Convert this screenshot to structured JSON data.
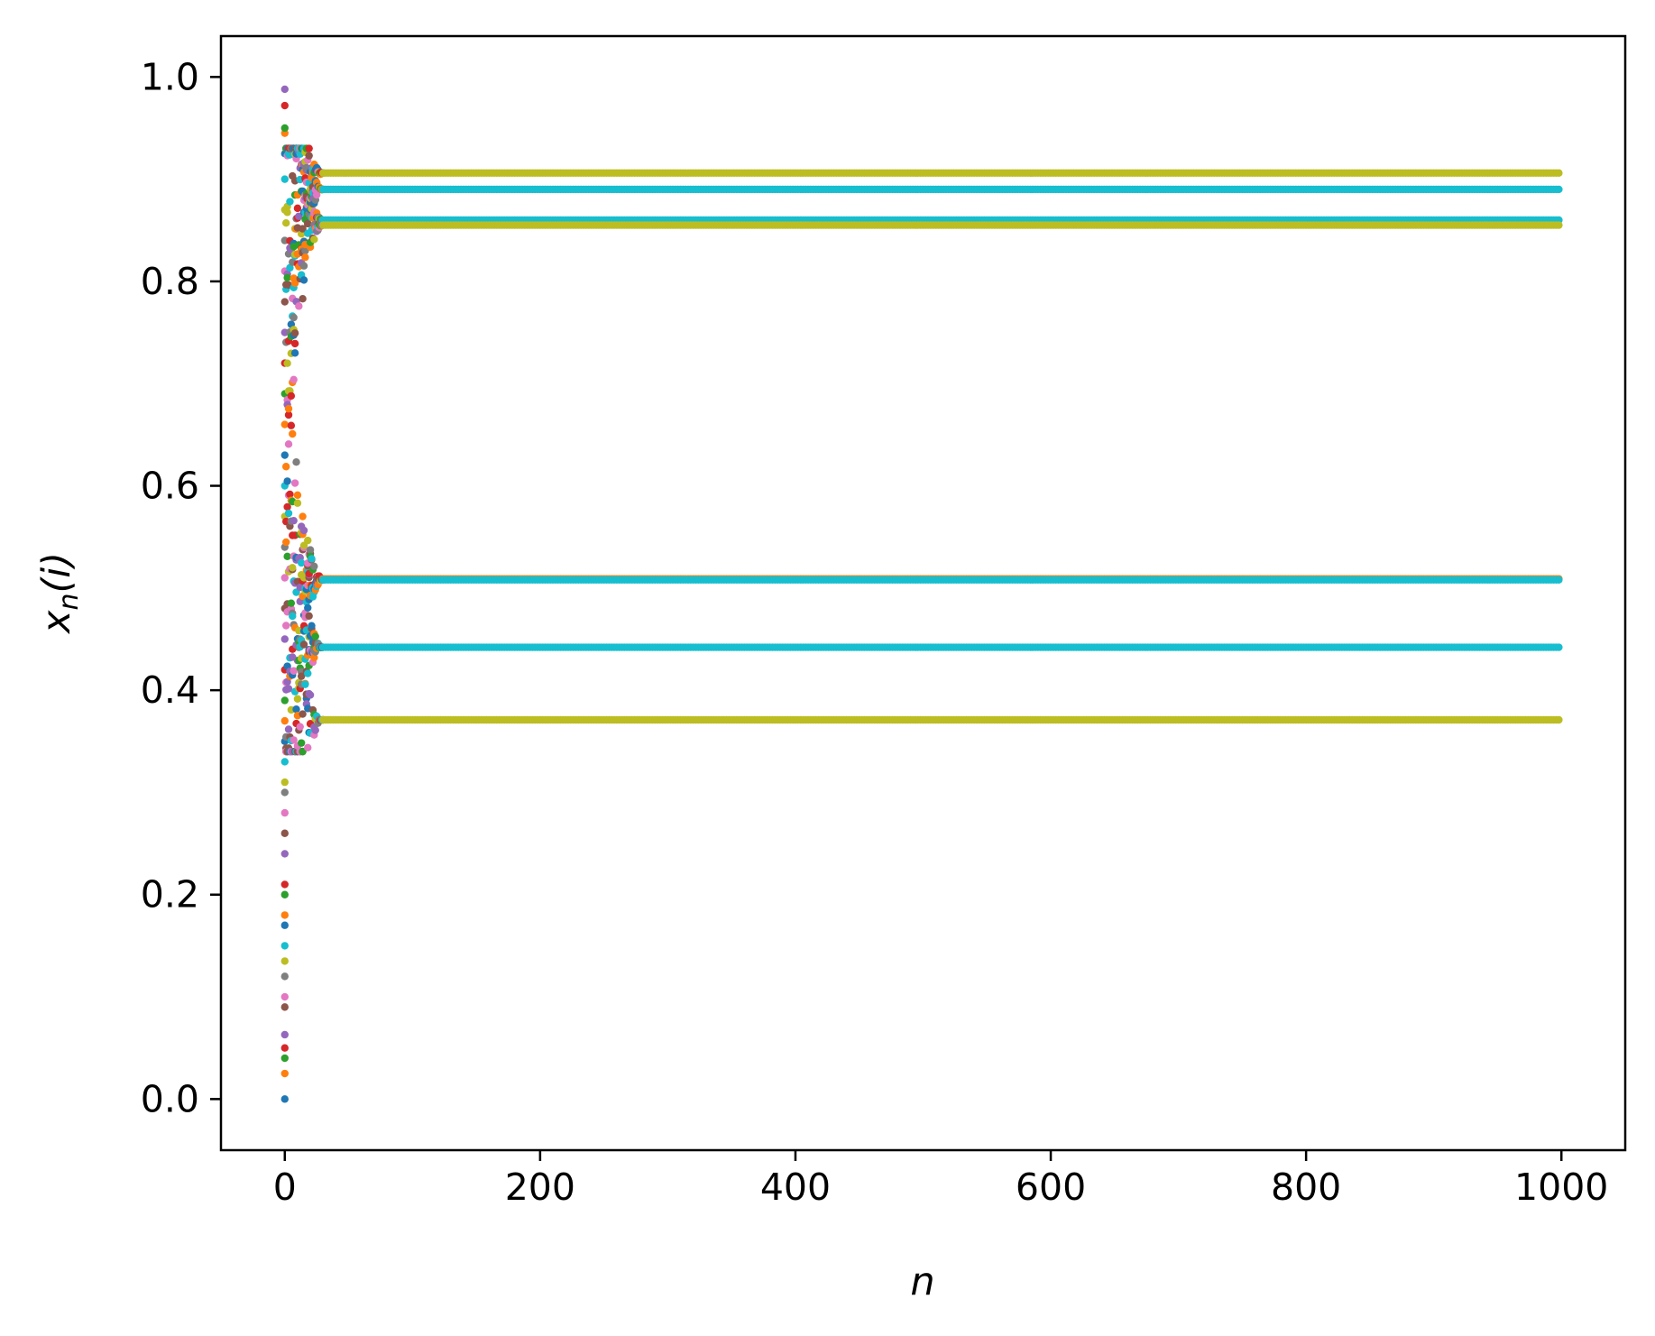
{
  "chart_data": {
    "type": "scatter",
    "title": "",
    "xlabel": "n",
    "ylabel_main": "x",
    "ylabel_sub": "n",
    "ylabel_rest": "(i)",
    "xlim": [
      -50,
      1050
    ],
    "ylim": [
      -0.05,
      1.04
    ],
    "x_ticks": [
      0,
      200,
      400,
      600,
      800,
      1000
    ],
    "x_tick_labels": [
      "0",
      "200",
      "400",
      "600",
      "800",
      "1000"
    ],
    "y_ticks": [
      0.0,
      0.2,
      0.4,
      0.6,
      0.8,
      1.0
    ],
    "y_tick_labels": [
      "0.0",
      "0.2",
      "0.4",
      "0.6",
      "0.8",
      "1.0"
    ],
    "grid": false,
    "legend": "none",
    "n_range": [
      0,
      999
    ],
    "transient_until_n": 30,
    "attractor_levels": [
      {
        "value": 0.906,
        "color": "#bcbd22"
      },
      {
        "value": 0.89,
        "color": "#17becf"
      },
      {
        "value": 0.86,
        "color": "#17becf"
      },
      {
        "value": 0.855,
        "color": "#bcbd22"
      },
      {
        "value": 0.509,
        "color": "#ff7f0e"
      },
      {
        "value": 0.508,
        "color": "#17becf"
      },
      {
        "value": 0.442,
        "color": "#17becf"
      },
      {
        "value": 0.371,
        "color": "#bcbd22"
      }
    ],
    "series_colors": [
      "#1f77b4",
      "#ff7f0e",
      "#2ca02c",
      "#d62728",
      "#9467bd",
      "#8c564b",
      "#e377c2",
      "#7f7f7f",
      "#bcbd22",
      "#17becf"
    ],
    "initial_points": [
      0.0,
      0.025,
      0.04,
      0.05,
      0.063,
      0.09,
      0.1,
      0.12,
      0.135,
      0.15,
      0.17,
      0.18,
      0.2,
      0.21,
      0.24,
      0.26,
      0.28,
      0.3,
      0.31,
      0.33,
      0.35,
      0.37,
      0.39,
      0.42,
      0.45,
      0.48,
      0.51,
      0.54,
      0.57,
      0.6,
      0.63,
      0.66,
      0.69,
      0.72,
      0.75,
      0.78,
      0.81,
      0.84,
      0.87,
      0.9,
      0.925,
      0.945,
      0.95,
      0.972,
      0.988
    ]
  }
}
